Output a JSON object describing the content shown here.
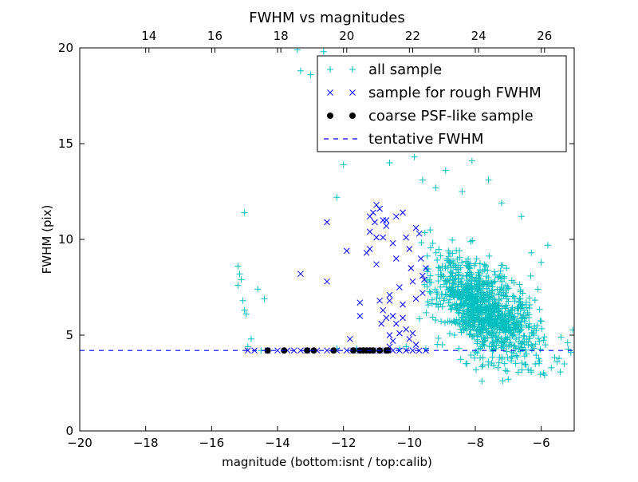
{
  "chart_data": {
    "type": "scatter",
    "title": "FWHM vs magnitudes",
    "xlabel": "magnitude (bottom:isnt / top:calib)",
    "ylabel": "FWHM (pix)",
    "xlim": [
      -20,
      -5
    ],
    "ylim": [
      0,
      20
    ],
    "x_ticks": [
      -20,
      -18,
      -16,
      -14,
      -12,
      -10,
      -8,
      -6
    ],
    "x_tick_labels": [
      "−20",
      "−18",
      "−16",
      "−14",
      "−12",
      "−10",
      "−8",
      "−6"
    ],
    "y_ticks": [
      0,
      5,
      10,
      15,
      20
    ],
    "y_tick_labels": [
      "0",
      "5",
      "10",
      "15",
      "20"
    ],
    "top_axis": {
      "offset": 31.9,
      "ticks": [
        14,
        16,
        18,
        20,
        22,
        24,
        26
      ],
      "tick_labels": [
        "14",
        "16",
        "18",
        "20",
        "22",
        "24",
        "26"
      ]
    },
    "grid": false,
    "legend_position": "top-right",
    "tentative_fwhm": 4.2,
    "colors": {
      "all_sample": "#00bfbf",
      "rough_sample": "#0000ff",
      "psf_sample": "#000000",
      "tentative_line": "#0000ff"
    },
    "series": [
      {
        "name": "all sample",
        "marker": "plus",
        "points": [
          [
            -15.2,
            8.6
          ],
          [
            -15.15,
            8.2
          ],
          [
            -15.2,
            7.6
          ],
          [
            -15.1,
            7.9
          ],
          [
            -15.05,
            6.8
          ],
          [
            -15.0,
            6.3
          ],
          [
            -14.95,
            6.1
          ],
          [
            -15.0,
            11.4
          ],
          [
            -14.8,
            4.8
          ],
          [
            -14.6,
            7.4
          ],
          [
            -14.4,
            6.9
          ],
          [
            -13.3,
            18.8
          ],
          [
            -13.0,
            18.6
          ],
          [
            -13.4,
            19.9
          ],
          [
            -12.6,
            19.8
          ],
          [
            -12.2,
            12.2
          ],
          [
            -12.0,
            13.9
          ],
          [
            -14.9,
            4.4
          ],
          [
            -14.5,
            4.2
          ],
          [
            -12.2,
            4.3
          ],
          [
            -11.6,
            4.3
          ],
          [
            -11.1,
            16.2
          ],
          [
            -10.7,
            19.1
          ],
          [
            -10.9,
            16.8
          ],
          [
            -10.6,
            14.0
          ],
          [
            -10.3,
            14.8
          ],
          [
            -9.85,
            14.3
          ],
          [
            -9.6,
            13.1
          ],
          [
            -9.2,
            12.7
          ],
          [
            -8.9,
            13.6
          ],
          [
            -8.4,
            12.5
          ],
          [
            -8.1,
            14.1
          ],
          [
            -7.6,
            13.1
          ],
          [
            -7.2,
            11.9
          ],
          [
            -6.6,
            11.2
          ],
          [
            -6.3,
            9.3
          ],
          [
            -6.0,
            8.8
          ],
          [
            -5.8,
            9.7
          ],
          [
            -5.4,
            4.9
          ],
          [
            -5.3,
            3.5
          ],
          [
            -5.1,
            4.1
          ],
          [
            -5.2,
            4.6
          ],
          [
            -7.0,
            2.7
          ],
          [
            -7.8,
            2.6
          ],
          [
            -6.4,
            3.2
          ],
          [
            -10.3,
            4.3
          ],
          [
            -10.1,
            4.4
          ],
          [
            -9.5,
            4.3
          ],
          [
            -9.0,
            4.5
          ],
          [
            -8.5,
            4.3
          ]
        ]
      },
      {
        "name": "sample for rough FWHM",
        "marker": "x",
        "points": [
          [
            -14.9,
            4.2
          ],
          [
            -14.7,
            4.2
          ],
          [
            -14.3,
            4.2
          ],
          [
            -14.0,
            4.2
          ],
          [
            -13.7,
            4.2
          ],
          [
            -13.5,
            4.2
          ],
          [
            -13.3,
            4.2
          ],
          [
            -13.1,
            4.2
          ],
          [
            -12.8,
            4.2
          ],
          [
            -12.5,
            4.2
          ],
          [
            -12.2,
            4.2
          ],
          [
            -11.9,
            4.2
          ],
          [
            -11.7,
            4.2
          ],
          [
            -11.5,
            4.2
          ],
          [
            -11.3,
            4.2
          ],
          [
            -11.1,
            4.2
          ],
          [
            -10.9,
            4.2
          ],
          [
            -10.7,
            4.2
          ],
          [
            -10.5,
            4.2
          ],
          [
            -10.3,
            4.2
          ],
          [
            -10.1,
            4.2
          ],
          [
            -9.9,
            4.2
          ],
          [
            -9.7,
            4.2
          ],
          [
            -9.5,
            4.2
          ],
          [
            -13.3,
            8.2
          ],
          [
            -12.5,
            7.8
          ],
          [
            -12.5,
            10.9
          ],
          [
            -11.9,
            9.4
          ],
          [
            -11.8,
            4.8
          ],
          [
            -11.5,
            6.7
          ],
          [
            -11.5,
            6.0
          ],
          [
            -11.3,
            9.3
          ],
          [
            -11.2,
            10.4
          ],
          [
            -11.2,
            9.5
          ],
          [
            -11.2,
            11.2
          ],
          [
            -11.1,
            11.4
          ],
          [
            -11.0,
            11.8
          ],
          [
            -11.05,
            10.9
          ],
          [
            -11.0,
            10.1
          ],
          [
            -10.9,
            11.6
          ],
          [
            -10.8,
            10.1
          ],
          [
            -10.7,
            11.0
          ],
          [
            -10.9,
            6.8
          ],
          [
            -10.8,
            6.3
          ],
          [
            -10.85,
            5.6
          ],
          [
            -10.7,
            5.9
          ],
          [
            -10.6,
            7.1
          ],
          [
            -10.5,
            9.8
          ],
          [
            -10.4,
            9.0
          ],
          [
            -10.3,
            7.5
          ],
          [
            -10.2,
            6.6
          ],
          [
            -10.1,
            10.1
          ],
          [
            -10.0,
            9.5
          ],
          [
            -9.95,
            8.5
          ],
          [
            -9.9,
            7.8
          ],
          [
            -9.8,
            6.9
          ],
          [
            -9.7,
            10.3
          ],
          [
            -9.65,
            9.0
          ],
          [
            -9.6,
            8.1
          ],
          [
            -9.55,
            7.9
          ],
          [
            -9.5,
            8.5
          ],
          [
            -10.6,
            6.8
          ],
          [
            -10.5,
            6.0
          ],
          [
            -10.4,
            5.6
          ],
          [
            -10.6,
            5.0
          ],
          [
            -10.5,
            4.7
          ],
          [
            -10.3,
            5.1
          ],
          [
            -10.2,
            5.9
          ],
          [
            -10.1,
            5.3
          ],
          [
            -10.0,
            4.8
          ],
          [
            -9.9,
            5.1
          ],
          [
            -9.8,
            4.5
          ],
          [
            -10.4,
            11.2
          ],
          [
            -10.2,
            11.4
          ],
          [
            -10.8,
            11.0
          ],
          [
            -11.0,
            8.7
          ],
          [
            -10.7,
            10.7
          ],
          [
            -9.8,
            10.6
          ],
          [
            -9.6,
            7.2
          ],
          [
            -10.6,
            4.4
          ]
        ]
      },
      {
        "name": "coarse PSF-like sample",
        "marker": "circle",
        "points": [
          [
            -14.3,
            4.2
          ],
          [
            -13.8,
            4.2
          ],
          [
            -13.1,
            4.2
          ],
          [
            -12.9,
            4.2
          ],
          [
            -12.3,
            4.2
          ],
          [
            -11.7,
            4.2
          ],
          [
            -11.5,
            4.2
          ],
          [
            -11.4,
            4.2
          ],
          [
            -11.3,
            4.2
          ],
          [
            -11.2,
            4.2
          ],
          [
            -11.1,
            4.2
          ],
          [
            -10.9,
            4.2
          ],
          [
            -10.7,
            4.2
          ],
          [
            -10.65,
            4.2
          ]
        ]
      },
      {
        "name": "tentative FWHM",
        "marker": "dashed-line"
      }
    ],
    "dense_cluster": {
      "series_index": 0,
      "count": 1100,
      "mean": [
        -7.7,
        6.3
      ],
      "std": [
        0.75,
        1.55
      ],
      "xlim": [
        -9.7,
        -5.0
      ],
      "ylim": [
        2.6,
        14.5
      ]
    }
  }
}
